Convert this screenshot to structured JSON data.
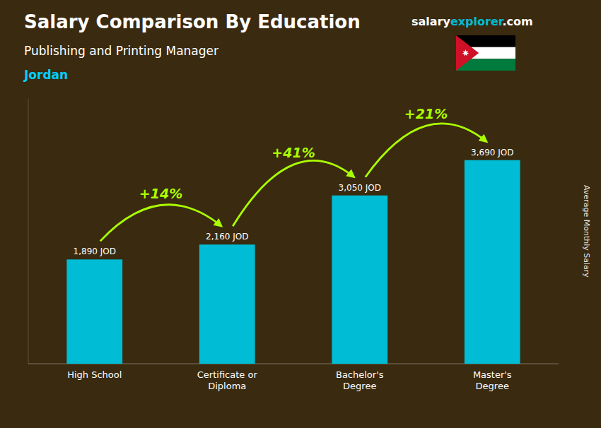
{
  "chart_data": {
    "type": "bar",
    "title": "Salary Comparison By Education",
    "subtitle": "Publishing and Printing Manager",
    "country": "Jordan",
    "categories": [
      "High School",
      "Certificate or\nDiploma",
      "Bachelor's\nDegree",
      "Master's\nDegree"
    ],
    "values": [
      1890,
      2160,
      3050,
      3690
    ],
    "value_labels": [
      "1,890 JOD",
      "2,160 JOD",
      "3,050 JOD",
      "3,690 JOD"
    ],
    "data_labels": true,
    "color": "#00bcd4",
    "ylim": [
      0,
      4800
    ],
    "ylabel": "Average Monthly Salary",
    "tick_labels": "x",
    "grid": false,
    "annotations": [
      {
        "text": "+14%",
        "color": "#aaff00"
      },
      {
        "text": "+41%",
        "color": "#aaff00"
      },
      {
        "text": "+21%",
        "color": "#aaff00"
      }
    ],
    "brand": [
      {
        "text": "salary",
        "color": "#ffffff"
      },
      {
        "text": "explorer",
        "color": "#00bcd4"
      },
      {
        "text": ".com",
        "color": "#ffffff"
      }
    ]
  }
}
